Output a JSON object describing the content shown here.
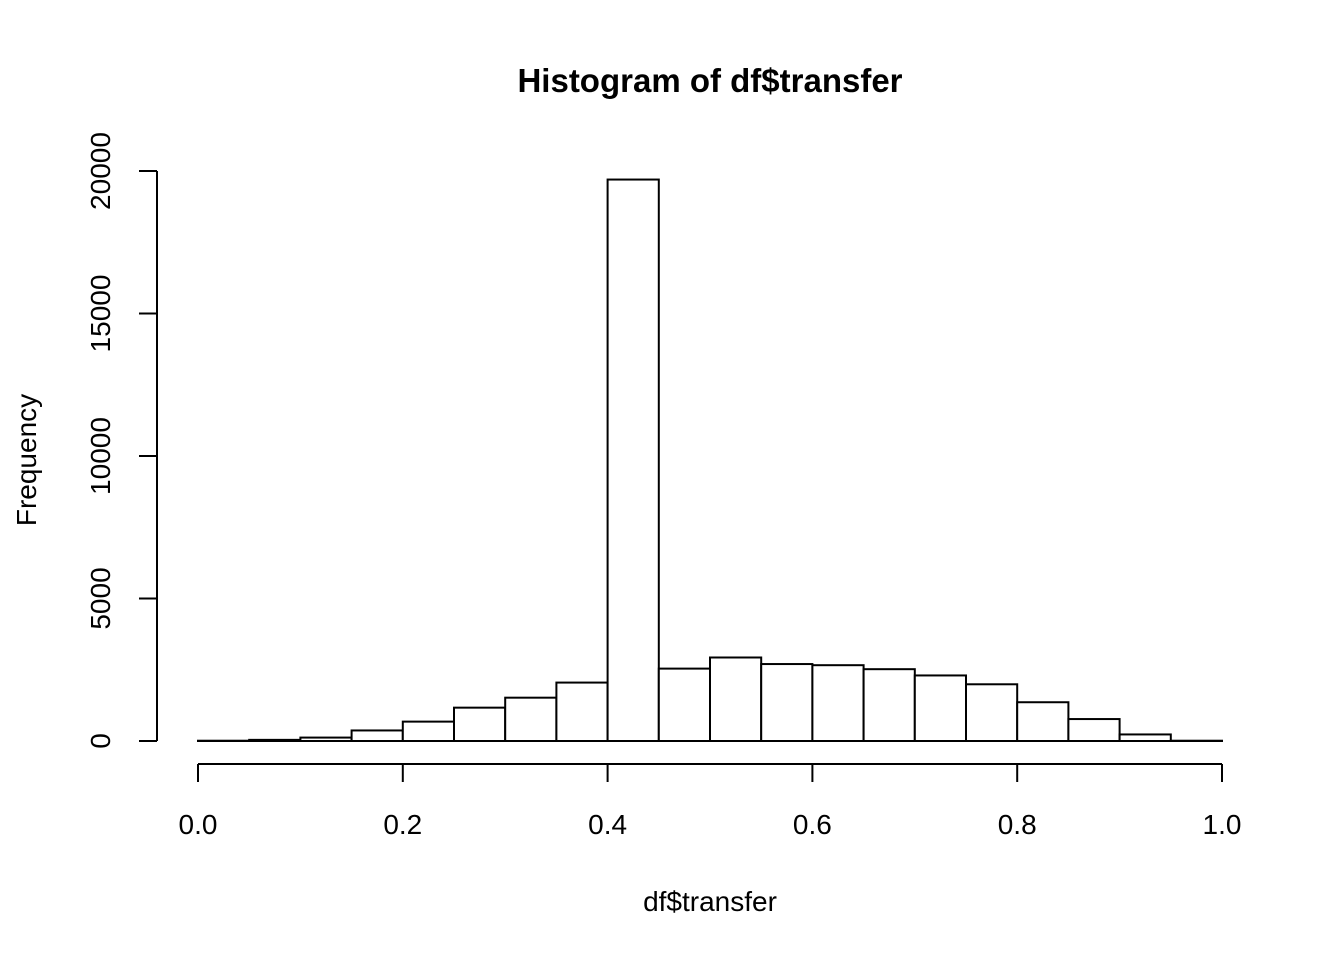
{
  "chart_data": {
    "type": "bar",
    "title": "Histogram of df$transfer",
    "xlabel": "df$transfer",
    "ylabel": "Frequency",
    "xlim": [
      0,
      1
    ],
    "ylim": [
      0,
      20000
    ],
    "bin_width": 0.05,
    "x_ticks": [
      "0.0",
      "0.2",
      "0.4",
      "0.6",
      "0.8",
      "1.0"
    ],
    "x_tick_values": [
      0,
      0.2,
      0.4,
      0.6,
      0.8,
      1.0
    ],
    "y_ticks": [
      "0",
      "5000",
      "10000",
      "15000",
      "20000"
    ],
    "y_tick_values": [
      0,
      5000,
      10000,
      15000,
      20000
    ],
    "bins": [
      {
        "start": 0.0,
        "end": 0.05,
        "value": 10
      },
      {
        "start": 0.05,
        "end": 0.1,
        "value": 40
      },
      {
        "start": 0.1,
        "end": 0.15,
        "value": 120
      },
      {
        "start": 0.15,
        "end": 0.2,
        "value": 370
      },
      {
        "start": 0.2,
        "end": 0.25,
        "value": 680
      },
      {
        "start": 0.25,
        "end": 0.3,
        "value": 1170
      },
      {
        "start": 0.3,
        "end": 0.35,
        "value": 1520
      },
      {
        "start": 0.35,
        "end": 0.4,
        "value": 2050
      },
      {
        "start": 0.4,
        "end": 0.45,
        "value": 19700
      },
      {
        "start": 0.45,
        "end": 0.5,
        "value": 2540
      },
      {
        "start": 0.5,
        "end": 0.55,
        "value": 2930
      },
      {
        "start": 0.55,
        "end": 0.6,
        "value": 2700
      },
      {
        "start": 0.6,
        "end": 0.65,
        "value": 2660
      },
      {
        "start": 0.65,
        "end": 0.7,
        "value": 2520
      },
      {
        "start": 0.7,
        "end": 0.75,
        "value": 2300
      },
      {
        "start": 0.75,
        "end": 0.8,
        "value": 1990
      },
      {
        "start": 0.8,
        "end": 0.85,
        "value": 1360
      },
      {
        "start": 0.85,
        "end": 0.9,
        "value": 770
      },
      {
        "start": 0.9,
        "end": 0.95,
        "value": 230
      },
      {
        "start": 0.95,
        "end": 1.0,
        "value": 10
      }
    ]
  }
}
